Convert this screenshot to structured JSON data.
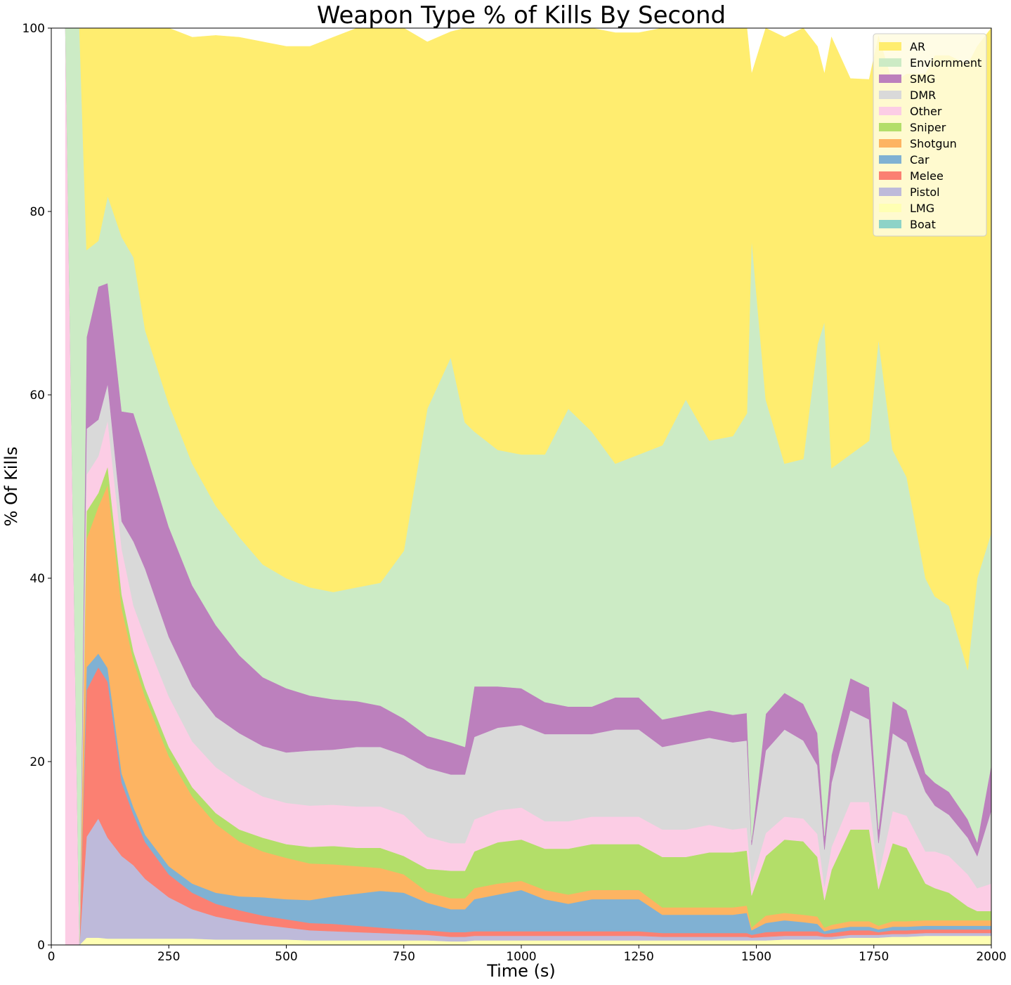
{
  "chart_data": {
    "type": "area",
    "stacked": true,
    "title": "Weapon Type % of Kills By Second",
    "xlabel": "Time (s)",
    "ylabel": "% Of Kills",
    "xlim": [
      0,
      2000
    ],
    "ylim": [
      0,
      100
    ],
    "xticks": [
      0,
      250,
      500,
      750,
      1000,
      1250,
      1500,
      1750,
      2000
    ],
    "yticks": [
      0,
      20,
      40,
      60,
      80,
      100
    ],
    "grid": false,
    "legend_position": "top-right",
    "x": [
      30,
      60,
      75,
      100,
      120,
      150,
      175,
      200,
      250,
      300,
      350,
      400,
      450,
      500,
      550,
      600,
      650,
      700,
      750,
      800,
      850,
      880,
      900,
      950,
      1000,
      1050,
      1100,
      1150,
      1200,
      1250,
      1300,
      1350,
      1400,
      1450,
      1480,
      1490,
      1520,
      1560,
      1600,
      1630,
      1645,
      1660,
      1700,
      1740,
      1760,
      1790,
      1820,
      1860,
      1880,
      1910,
      1950,
      1970,
      2000
    ],
    "series": [
      {
        "name": "Boat",
        "color": "#8dd3c7",
        "values": [
          0,
          0,
          0,
          0,
          0,
          0,
          0,
          0,
          0,
          0,
          0,
          0,
          0,
          0,
          0,
          0,
          0,
          0,
          0,
          0,
          0,
          0,
          0,
          0,
          0,
          0,
          0,
          0,
          0,
          0,
          0,
          0,
          0,
          0,
          0,
          0,
          0,
          0,
          0,
          0,
          0,
          0,
          0,
          0,
          0,
          0,
          0,
          0,
          0,
          0,
          0,
          0,
          0
        ]
      },
      {
        "name": "LMG",
        "color": "#ffffb3",
        "values": [
          0,
          0,
          0.8,
          0.8,
          0.7,
          0.7,
          0.7,
          0.7,
          0.7,
          0.7,
          0.6,
          0.6,
          0.6,
          0.6,
          0.5,
          0.5,
          0.5,
          0.5,
          0.5,
          0.5,
          0.4,
          0.4,
          0.5,
          0.5,
          0.5,
          0.5,
          0.5,
          0.5,
          0.5,
          0.5,
          0.5,
          0.5,
          0.5,
          0.5,
          0.5,
          0.5,
          0.5,
          0.6,
          0.6,
          0.6,
          0.6,
          0.6,
          0.8,
          0.8,
          0.8,
          0.9,
          0.9,
          1.0,
          1.0,
          1.0,
          1.0,
          1.0,
          1.0
        ]
      },
      {
        "name": "Pistol",
        "color": "#bebada",
        "values": [
          0,
          0,
          11.0,
          13.0,
          11.0,
          9.0,
          8.0,
          6.5,
          4.5,
          3.2,
          2.5,
          2.0,
          1.6,
          1.3,
          1.1,
          1.0,
          0.9,
          0.8,
          0.7,
          0.6,
          0.5,
          0.5,
          0.5,
          0.5,
          0.5,
          0.5,
          0.5,
          0.5,
          0.5,
          0.5,
          0.4,
          0.4,
          0.4,
          0.4,
          0.4,
          0.3,
          0.4,
          0.4,
          0.4,
          0.4,
          0.3,
          0.3,
          0.3,
          0.3,
          0.3,
          0.3,
          0.3,
          0.3,
          0.3,
          0.3,
          0.3,
          0.3,
          0.3
        ]
      },
      {
        "name": "Melee",
        "color": "#fb8072",
        "values": [
          0,
          0,
          16.0,
          16.5,
          17.0,
          8.0,
          5.5,
          4.0,
          2.5,
          1.8,
          1.4,
          1.2,
          1.0,
          0.9,
          0.8,
          0.8,
          0.7,
          0.6,
          0.5,
          0.5,
          0.5,
          0.5,
          0.5,
          0.5,
          0.5,
          0.5,
          0.5,
          0.5,
          0.5,
          0.5,
          0.4,
          0.4,
          0.4,
          0.4,
          0.4,
          0.3,
          0.5,
          0.5,
          0.5,
          0.5,
          0.3,
          0.4,
          0.5,
          0.5,
          0.3,
          0.4,
          0.4,
          0.4,
          0.4,
          0.4,
          0.4,
          0.4,
          0.4
        ]
      },
      {
        "name": "Car",
        "color": "#80b1d3",
        "values": [
          0,
          0,
          2.5,
          1.5,
          1.5,
          1.0,
          0.8,
          0.8,
          0.9,
          1.0,
          1.2,
          1.5,
          2.0,
          2.2,
          2.5,
          3.0,
          3.5,
          4.0,
          4.0,
          3.0,
          2.5,
          2.5,
          3.5,
          4.0,
          4.5,
          3.5,
          3.0,
          3.5,
          3.5,
          3.5,
          2.0,
          2.0,
          2.0,
          2.0,
          2.2,
          0.5,
          1.0,
          1.2,
          1.0,
          0.8,
          0.3,
          0.4,
          0.4,
          0.4,
          0.3,
          0.4,
          0.4,
          0.4,
          0.4,
          0.4,
          0.4,
          0.4,
          0.4
        ]
      },
      {
        "name": "Shotgun",
        "color": "#fdb462",
        "values": [
          0,
          0,
          14.0,
          16.0,
          20.0,
          18.0,
          16.0,
          15.0,
          12.0,
          9.5,
          7.5,
          6.0,
          5.0,
          4.5,
          4.0,
          3.5,
          3.0,
          2.5,
          2.0,
          1.2,
          1.2,
          1.2,
          1.2,
          1.2,
          1.0,
          1.0,
          1.0,
          1.0,
          1.0,
          1.0,
          0.8,
          0.8,
          0.8,
          0.8,
          0.8,
          0.3,
          0.8,
          0.8,
          0.8,
          0.8,
          0.4,
          0.5,
          0.6,
          0.6,
          0.4,
          0.6,
          0.6,
          0.6,
          0.6,
          0.6,
          0.6,
          0.6,
          0.6
        ]
      },
      {
        "name": "Sniper",
        "color": "#b3de69",
        "values": [
          0,
          0,
          3.0,
          1.5,
          2.0,
          1.5,
          1.0,
          1.0,
          1.0,
          1.0,
          1.2,
          1.3,
          1.5,
          1.5,
          1.8,
          2.0,
          2.0,
          2.2,
          2.0,
          2.5,
          3.0,
          3.0,
          4.0,
          4.5,
          4.5,
          4.5,
          5.0,
          5.0,
          5.0,
          5.0,
          5.5,
          5.5,
          6.0,
          6.0,
          6.0,
          3.5,
          6.5,
          8.0,
          8.0,
          6.5,
          3.0,
          6.0,
          10.0,
          10.0,
          4.0,
          8.5,
          8.0,
          4.0,
          3.5,
          3.0,
          1.5,
          1.0,
          1.0
        ]
      },
      {
        "name": "Other",
        "color": "#fccde5",
        "values": [
          100,
          0,
          4.0,
          4.0,
          5.0,
          5.0,
          5.0,
          5.5,
          5.5,
          5.0,
          5.0,
          5.0,
          4.5,
          4.5,
          4.5,
          4.5,
          4.5,
          4.5,
          4.5,
          3.5,
          3.0,
          3.0,
          3.5,
          3.5,
          3.5,
          3.0,
          3.0,
          3.0,
          3.0,
          3.0,
          3.0,
          3.0,
          3.0,
          2.5,
          2.5,
          1.5,
          2.5,
          2.5,
          2.5,
          2.5,
          1.5,
          2.5,
          3.0,
          3.0,
          1.5,
          3.5,
          3.5,
          3.5,
          4.0,
          4.0,
          3.5,
          2.5,
          3.0
        ]
      },
      {
        "name": "DMR",
        "color": "#d9d9d9",
        "values": [
          0,
          0,
          5.0,
          4.0,
          4.0,
          3.0,
          7.0,
          7.5,
          6.5,
          6.0,
          5.5,
          5.5,
          5.5,
          5.5,
          6.0,
          6.0,
          6.5,
          6.5,
          6.5,
          7.5,
          7.5,
          7.5,
          9.0,
          9.0,
          9.0,
          9.5,
          9.5,
          9.0,
          9.5,
          9.5,
          9.0,
          9.5,
          9.5,
          9.5,
          9.5,
          4.0,
          9.0,
          9.5,
          8.5,
          7.5,
          4.0,
          7.0,
          10.0,
          9.0,
          3.5,
          8.5,
          8.0,
          6.5,
          5.0,
          4.5,
          4.0,
          3.5,
          8.0
        ]
      },
      {
        "name": "SMG",
        "color": "#bc80bd",
        "values": [
          0,
          0,
          10.0,
          14.5,
          11.0,
          12.0,
          14.0,
          13.0,
          12.0,
          11.0,
          10.0,
          8.5,
          7.5,
          7.0,
          6.0,
          5.5,
          5.0,
          4.5,
          4.0,
          3.5,
          3.5,
          3.0,
          5.5,
          4.5,
          4.0,
          3.5,
          3.0,
          3.0,
          3.5,
          3.5,
          3.0,
          3.0,
          3.0,
          3.0,
          3.0,
          0.5,
          4.0,
          4.0,
          4.0,
          3.5,
          1.5,
          3.0,
          3.5,
          3.5,
          1.5,
          3.5,
          3.5,
          2.0,
          2.5,
          2.5,
          2.0,
          1.5,
          5.0
        ]
      },
      {
        "name": "Enviornment",
        "color": "#ccebc5",
        "values": [
          0,
          100,
          9.5,
          5.0,
          9.5,
          19.0,
          17.0,
          13.0,
          13.4,
          13.3,
          13.0,
          12.9,
          12.3,
          12.0,
          11.8,
          11.7,
          12.4,
          13.4,
          18.3,
          35.7,
          42.0,
          35.4,
          27.8,
          25.8,
          25.5,
          27.0,
          32.5,
          30.0,
          25.5,
          26.5,
          29.9,
          34.4,
          29.4,
          30.4,
          32.7,
          65.6,
          34.3,
          25.0,
          26.7,
          42.4,
          56.1,
          31.3,
          24.4,
          26.9,
          53.5,
          27.4,
          25.4,
          21.3,
          20.3,
          20.3,
          16.3,
          28.8,
          25.3
        ]
      },
      {
        "name": "AR",
        "color": "#ffed6f",
        "values": [
          0,
          0,
          24.2,
          23.2,
          18.3,
          22.8,
          25.0,
          33.0,
          41.0,
          46.5,
          51.3,
          54.5,
          57.0,
          58.0,
          59.0,
          60.5,
          61.0,
          61.0,
          57.0,
          40.0,
          35.5,
          43.5,
          48.5,
          50.0,
          50.5,
          51.0,
          46.0,
          44.5,
          47.0,
          46.0,
          48.0,
          43.0,
          47.5,
          46.9,
          44.9,
          18.0,
          45.0,
          46.5,
          47.0,
          32.5,
          27.0,
          47.0,
          41.0,
          39.4,
          33.0,
          40.0,
          44.0,
          55.0,
          59.0,
          60.0,
          66.0,
          58.0,
          57.0
        ]
      }
    ]
  }
}
